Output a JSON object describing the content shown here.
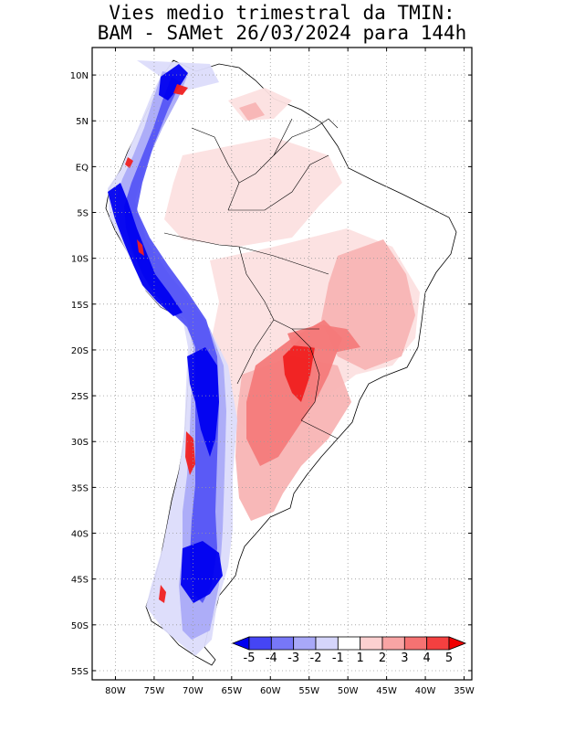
{
  "title": {
    "line1": "Vies medio trimestral da TMIN:",
    "line2": "BAM - SAMet 26/03/2024  para 144h"
  },
  "axes": {
    "lat_labels": [
      {
        "text": "10N",
        "lat": 10
      },
      {
        "text": "5N",
        "lat": 5
      },
      {
        "text": "EQ",
        "lat": 0
      },
      {
        "text": "5S",
        "lat": -5
      },
      {
        "text": "10S",
        "lat": -10
      },
      {
        "text": "15S",
        "lat": -15
      },
      {
        "text": "20S",
        "lat": -20
      },
      {
        "text": "25S",
        "lat": -25
      },
      {
        "text": "30S",
        "lat": -30
      },
      {
        "text": "35S",
        "lat": -35
      },
      {
        "text": "40S",
        "lat": -40
      },
      {
        "text": "45S",
        "lat": -45
      },
      {
        "text": "50S",
        "lat": -50
      },
      {
        "text": "55S",
        "lat": -55
      }
    ],
    "lon_labels": [
      {
        "text": "80W",
        "lon": -80
      },
      {
        "text": "75W",
        "lon": -75
      },
      {
        "text": "70W",
        "lon": -70
      },
      {
        "text": "65W",
        "lon": -65
      },
      {
        "text": "60W",
        "lon": -60
      },
      {
        "text": "55W",
        "lon": -55
      },
      {
        "text": "50W",
        "lon": -50
      },
      {
        "text": "45W",
        "lon": -45
      },
      {
        "text": "40W",
        "lon": -40
      },
      {
        "text": "35W",
        "lon": -35
      }
    ],
    "lon_range": [
      -83,
      -34
    ],
    "lat_range": [
      -56,
      13
    ],
    "grid": "dotted"
  },
  "colorbar": {
    "labels": [
      "-5",
      "-4",
      "-3",
      "-2",
      "-1",
      "1",
      "2",
      "3",
      "4",
      "5"
    ],
    "colors": [
      "#0000f0",
      "#4545f5",
      "#7777f7",
      "#a8a8f8",
      "#d5d5fb",
      "#ffffff",
      "#fcd0d0",
      "#f8a4a4",
      "#f57272",
      "#f44040",
      "#f00000"
    ]
  },
  "map_colors": {
    "strong_cold": "#0000f0",
    "cold": "#5555f5",
    "light_cold": "#aaaaf8",
    "pale_cold": "#dcdcfb",
    "pale_warm": "#fce0e0",
    "light_warm": "#f8b4b4",
    "warm": "#f47a7a",
    "strong_warm": "#f02020"
  }
}
